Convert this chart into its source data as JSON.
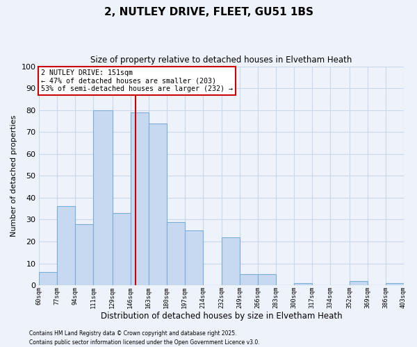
{
  "title": "2, NUTLEY DRIVE, FLEET, GU51 1BS",
  "subtitle": "Size of property relative to detached houses in Elvetham Heath",
  "xlabel": "Distribution of detached houses by size in Elvetham Heath",
  "ylabel": "Number of detached properties",
  "bar_edges": [
    60,
    77,
    94,
    111,
    129,
    146,
    163,
    180,
    197,
    214,
    232,
    249,
    266,
    283,
    300,
    317,
    334,
    352,
    369,
    386,
    403
  ],
  "bar_values": [
    6,
    36,
    28,
    80,
    33,
    79,
    74,
    29,
    25,
    0,
    22,
    5,
    5,
    0,
    1,
    0,
    0,
    2,
    0,
    1
  ],
  "bar_color": "#c6d9f1",
  "bar_edge_color": "#7baed6",
  "vline_x": 151,
  "vline_color": "#cc0000",
  "annotation_title": "2 NUTLEY DRIVE: 151sqm",
  "annotation_line1": "← 47% of detached houses are smaller (203)",
  "annotation_line2": "53% of semi-detached houses are larger (232) →",
  "annotation_box_color": "#ffffff",
  "annotation_box_edge": "#cc0000",
  "tick_labels": [
    "60sqm",
    "77sqm",
    "94sqm",
    "111sqm",
    "129sqm",
    "146sqm",
    "163sqm",
    "180sqm",
    "197sqm",
    "214sqm",
    "232sqm",
    "249sqm",
    "266sqm",
    "283sqm",
    "300sqm",
    "317sqm",
    "334sqm",
    "352sqm",
    "369sqm",
    "386sqm",
    "403sqm"
  ],
  "ylim": [
    0,
    100
  ],
  "yticks": [
    0,
    10,
    20,
    30,
    40,
    50,
    60,
    70,
    80,
    90,
    100
  ],
  "grid_color": "#c8d8ec",
  "bg_color": "#eef2fa",
  "footnote1": "Contains HM Land Registry data © Crown copyright and database right 2025.",
  "footnote2": "Contains public sector information licensed under the Open Government Licence v3.0."
}
